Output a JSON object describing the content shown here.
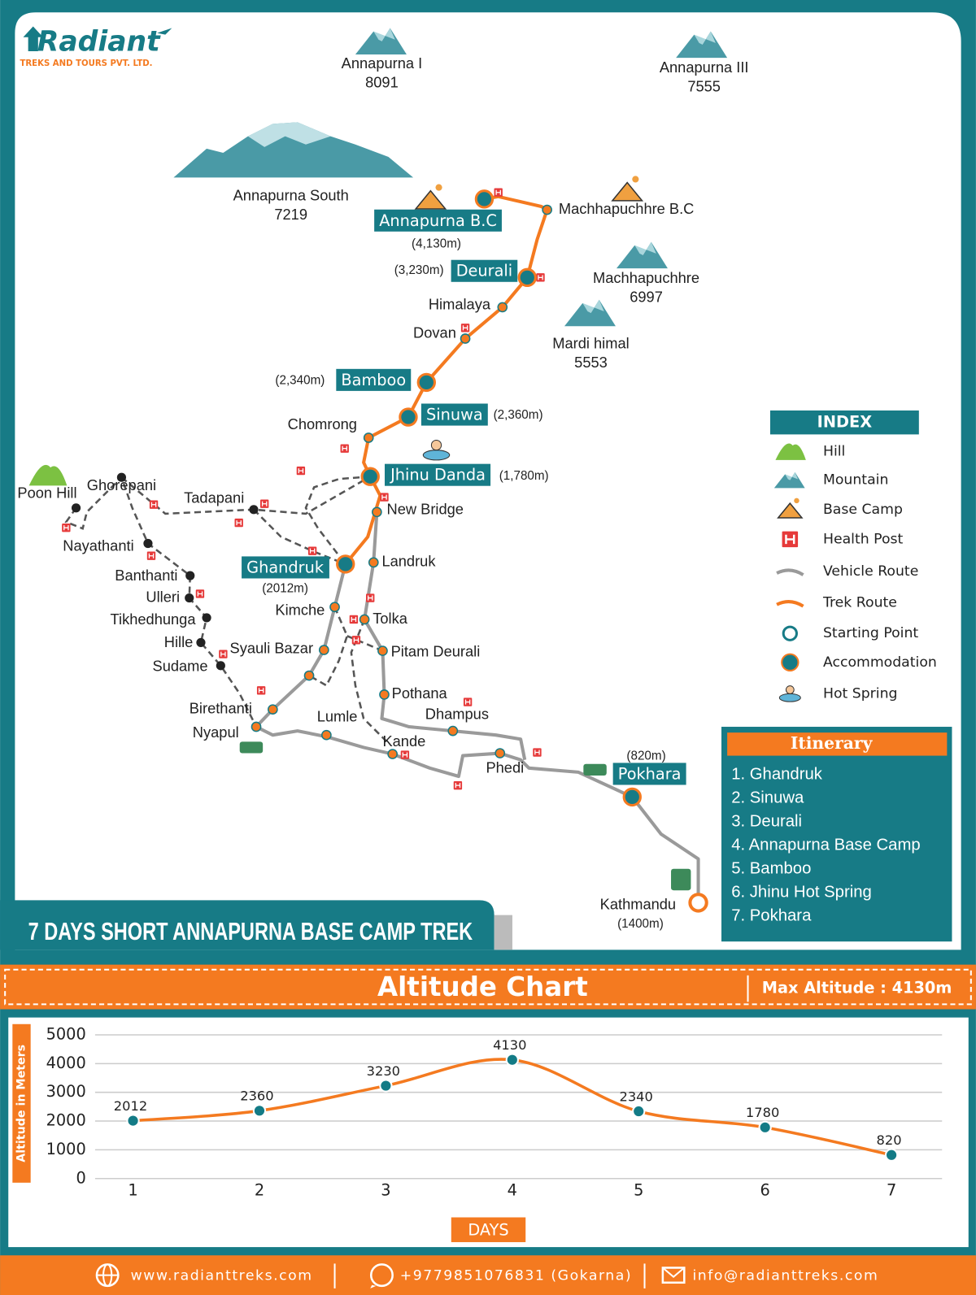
{
  "logo": {
    "name": "Radiant",
    "tagline": "TREKS AND TOURS PVT. LTD."
  },
  "peaks": [
    {
      "name": "Annapurna I",
      "height": 8091
    },
    {
      "name": "Annapurna III",
      "height": 7555
    },
    {
      "name": "Annapurna South",
      "height": 7219
    },
    {
      "name": "Machhapuchhre",
      "height": 6997
    },
    {
      "name": "Mardi himal",
      "height": 5553
    }
  ],
  "places": [
    "Annapurna B.C",
    "Machhapuchhre B.C",
    "Deurali",
    "Himalaya",
    "Dovan",
    "Bamboo",
    "Sinuwa",
    "Chomrong",
    "Jhinu Danda",
    "New Bridge",
    "Ghandruk",
    "Landruk",
    "Kimche",
    "Tolka",
    "Syauli Bazar",
    "Pitam Deurali",
    "Pothana",
    "Dhampus",
    "Birethanti",
    "Nyapul",
    "Lumle",
    "Kande",
    "Phedi",
    "Pokhara",
    "Kathmandu",
    "Poon Hill",
    "Ghorepani",
    "Tadapani",
    "Nayathanti",
    "Banthanti",
    "Ulleri",
    "Tikhedhunga",
    "Hille",
    "Sudame"
  ],
  "altitude_labels": [
    "(4,130m)",
    "(3,230m)",
    "(2,340m)",
    "(2,360m)",
    "(1,780m)",
    "(2012m)",
    "(820m)",
    "(1400m)"
  ],
  "trek_title": "7 DAYS SHORT ANNAPURNA BASE CAMP TREK",
  "index": {
    "title": "INDEX",
    "items": [
      "Hill",
      "Mountain",
      "Base Camp",
      "Health Post",
      "Vehicle Route",
      "Trek Route",
      "Starting Point",
      "Accommodation",
      "Hot Spring"
    ]
  },
  "itinerary": {
    "title": "Itinerary",
    "items": [
      "1. Ghandruk",
      "2. Sinuwa",
      "3. Deurali",
      "4. Annapurna Base Camp",
      "5. Bamboo",
      "6. Jhinu Hot Spring",
      "7. Pokhara"
    ]
  },
  "altitude_header": {
    "title": "Altitude Chart",
    "max": "Max Altitude : 4130m"
  },
  "chart_data": {
    "type": "line",
    "x": [
      1,
      2,
      3,
      4,
      5,
      6,
      7
    ],
    "values": [
      2012,
      2360,
      3230,
      4130,
      2340,
      1780,
      820
    ],
    "xlim": [
      0.7,
      7.4
    ],
    "xticks": [
      1,
      2,
      3,
      4,
      5,
      6,
      7
    ],
    "ylim": [
      0,
      5000
    ],
    "yticks": [
      0,
      1000,
      2000,
      3000,
      4000,
      5000
    ],
    "x_label": "DAYS",
    "y_label": "Altitude in Meters",
    "color": "#f47a20",
    "marker_color": "#137b86",
    "grid": true
  },
  "footer": {
    "website": "www.radianttreks.com",
    "phone": "+9779851076831 (Gokarna)",
    "email": "info@radianttreks.com"
  }
}
